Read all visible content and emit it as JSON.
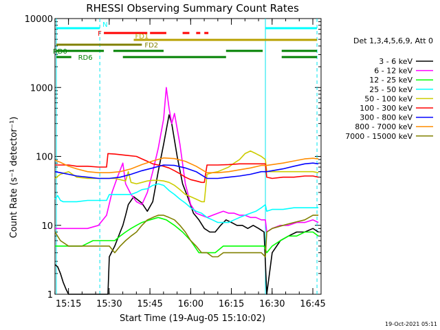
{
  "chart_data": {
    "type": "line",
    "title": "RHESSI Observing Summary Count Rates",
    "xlabel": "Start Time (19-Aug-05 15:10:02)",
    "ylabel": "Count Rate (s⁻¹ detector⁻¹)",
    "y_scale": "log",
    "ylim": [
      1,
      10000
    ],
    "xlim_minutes": [
      0,
      98
    ],
    "x_ticks": [
      "15:15",
      "15:30",
      "15:45",
      "16:00",
      "16:15",
      "16:30",
      "16:45"
    ],
    "x_tick_minutes": [
      4.97,
      19.97,
      34.97,
      49.97,
      64.97,
      79.97,
      94.97
    ],
    "y_ticks": [
      "1",
      "10",
      "100",
      "1000",
      "10000"
    ],
    "y_tick_values": [
      1,
      10,
      100,
      1000,
      10000
    ],
    "legend_title": "Det 1,3,4,5,6,9, Att 0",
    "legend_position": "right",
    "timestamp": "19-Oct-2021 05:11",
    "cyan_solid_lines_minutes": [
      0.5,
      77.5
    ],
    "cyan_dashed_lines_minutes": [
      16.5,
      96.5
    ],
    "flag_bars": [
      {
        "label": "N",
        "color": "#00ffff",
        "segments": [
          [
            0.5,
            16.5
          ],
          [
            77.5,
            96.5
          ]
        ]
      },
      {
        "label": "F",
        "color": "#ff0000",
        "segments": [
          [
            18.0,
            34.0
          ],
          [
            35.0,
            41.0
          ],
          [
            47.0,
            49.5
          ],
          [
            52.0,
            53.5
          ],
          [
            55.0,
            56.5
          ]
        ]
      },
      {
        "label": "FD1",
        "color": "#b8a000",
        "segments": [
          [
            29.0,
            96.5
          ]
        ]
      },
      {
        "label": "FD2",
        "color": "#808000",
        "segments": [
          [
            0.5,
            32.0
          ]
        ]
      },
      {
        "label": "RD0",
        "color": "#008000",
        "segments": [
          [
            0.5,
            18.0
          ],
          [
            21.5,
            40.0
          ],
          [
            63.0,
            76.5
          ],
          [
            83.5,
            96.5
          ]
        ]
      },
      {
        "label": "RD6",
        "color": "#008000",
        "segments": [
          [
            0.5,
            6.0
          ],
          [
            25.0,
            63.0
          ],
          [
            83.5,
            96.5
          ]
        ]
      }
    ],
    "series": [
      {
        "name": "3 - 6 keV",
        "color": "#000000",
        "x": [
          0,
          1,
          2,
          3,
          4,
          5,
          6,
          19.5,
          20,
          22,
          24,
          25,
          26,
          27,
          29,
          32,
          34,
          36,
          38,
          40,
          42,
          43,
          45,
          47,
          49,
          51,
          53,
          55,
          57,
          59,
          61,
          63,
          65,
          67,
          69,
          71,
          73,
          75,
          77,
          78,
          80,
          83,
          86,
          89,
          92,
          95,
          97
        ],
        "y": [
          2.7,
          2.5,
          2.0,
          1.5,
          1.2,
          1.0,
          1.0,
          1.0,
          3.5,
          5,
          8,
          10,
          14,
          20,
          26,
          21,
          16,
          22,
          60,
          150,
          400,
          300,
          100,
          40,
          25,
          15,
          12,
          9,
          8,
          8,
          10,
          12,
          11,
          10,
          10,
          9,
          10,
          9,
          8,
          1.0,
          4,
          6,
          7,
          8,
          8,
          9,
          8
        ]
      },
      {
        "name": "6 - 12 keV",
        "color": "#ff00ff",
        "x": [
          0,
          2,
          5,
          8,
          12,
          16,
          19,
          21,
          23,
          25,
          26,
          28,
          30,
          32,
          34,
          36,
          38,
          40,
          41,
          42,
          43,
          44,
          46,
          48,
          50,
          52,
          54,
          56,
          58,
          60,
          62,
          64,
          66,
          68,
          70,
          72,
          74,
          76,
          77.5,
          78,
          80,
          83,
          86,
          89,
          92,
          95,
          97
        ],
        "y": [
          9,
          9,
          9,
          9,
          9,
          10,
          14,
          30,
          50,
          80,
          40,
          28,
          22,
          20,
          30,
          60,
          130,
          350,
          1000,
          500,
          300,
          420,
          150,
          40,
          20,
          15,
          14,
          13,
          14,
          15,
          16,
          15,
          15,
          14,
          14,
          13,
          13,
          12,
          12,
          8,
          9,
          10,
          10,
          11,
          11,
          12,
          11
        ]
      },
      {
        "name": "12 - 25 keV",
        "color": "#00ff00",
        "x": [
          0,
          3,
          6,
          10,
          14,
          18,
          20,
          22,
          24,
          26,
          28,
          30,
          32,
          35,
          38,
          41,
          44,
          47,
          50,
          53,
          56,
          59,
          62,
          65,
          68,
          71,
          74,
          77,
          78,
          80,
          83,
          86,
          89,
          92,
          95,
          97
        ],
        "y": [
          5,
          5,
          5,
          5,
          6,
          6,
          6,
          6,
          7,
          8,
          9,
          10,
          11,
          12,
          13,
          12,
          10,
          8,
          6,
          4,
          4,
          4,
          5,
          5,
          5,
          5,
          5,
          5,
          4,
          5,
          6,
          7,
          7,
          8,
          8,
          7
        ]
      },
      {
        "name": "25 - 50 keV",
        "color": "#00ffff",
        "x": [
          0,
          1,
          2,
          3,
          5,
          8,
          12,
          16,
          19,
          20,
          22,
          24,
          26,
          28,
          30,
          32,
          34,
          36,
          38,
          40,
          42,
          44,
          46,
          48,
          50,
          52,
          54,
          56,
          58,
          60,
          62,
          64,
          66,
          68,
          70,
          72,
          74,
          76,
          77.5,
          78,
          80,
          84,
          88,
          92,
          95,
          97
        ],
        "y": [
          24,
          27,
          23,
          22,
          22,
          22,
          23,
          23,
          23,
          28,
          28,
          28,
          28,
          28,
          30,
          33,
          34,
          38,
          40,
          38,
          32,
          28,
          24,
          21,
          18,
          16,
          15,
          13,
          12,
          11,
          11,
          11,
          12,
          13,
          14,
          15,
          16,
          18,
          20,
          16,
          17,
          17,
          18,
          18,
          18,
          18
        ]
      },
      {
        "name": "50 - 100 keV",
        "color": "#cccc00",
        "x": [
          0,
          2,
          5,
          8,
          12,
          16,
          19,
          20,
          22,
          24,
          26,
          27,
          28,
          30,
          32,
          34,
          36,
          38,
          40,
          42,
          44,
          46,
          48,
          50,
          52,
          54,
          55,
          56,
          58,
          60,
          62,
          64,
          66,
          68,
          70,
          72,
          74,
          76,
          77.5,
          78,
          80,
          84,
          88,
          92,
          95,
          97
        ],
        "y": [
          48,
          55,
          60,
          50,
          48,
          48,
          48,
          48,
          48,
          46,
          44,
          60,
          42,
          40,
          42,
          44,
          45,
          45,
          44,
          42,
          38,
          33,
          28,
          26,
          24,
          22,
          22,
          55,
          58,
          60,
          65,
          70,
          80,
          90,
          110,
          120,
          110,
          100,
          90,
          60,
          60,
          60,
          60,
          60,
          60,
          58
        ]
      },
      {
        "name": "100 - 300 keV",
        "color": "#ff0000",
        "x": [
          0,
          2,
          5,
          8,
          12,
          16,
          19,
          19.5,
          22,
          26,
          30,
          32,
          34,
          36,
          38,
          40,
          42,
          44,
          46,
          48,
          50,
          52,
          54,
          55,
          56,
          60,
          64,
          68,
          72,
          76,
          77.5,
          78,
          80,
          84,
          88,
          92,
          95,
          97
        ],
        "y": [
          75,
          75,
          75,
          72,
          72,
          70,
          70,
          110,
          108,
          104,
          100,
          92,
          85,
          78,
          75,
          72,
          68,
          62,
          56,
          50,
          46,
          44,
          42,
          42,
          75,
          75,
          76,
          78,
          78,
          78,
          78,
          50,
          48,
          50,
          50,
          52,
          52,
          50
        ]
      },
      {
        "name": "300 - 800 keV",
        "color": "#0000ff",
        "x": [
          0,
          2,
          5,
          8,
          12,
          16,
          20,
          24,
          28,
          32,
          36,
          40,
          44,
          48,
          52,
          56,
          60,
          64,
          68,
          72,
          76,
          78,
          80,
          84,
          88,
          92,
          95,
          97
        ],
        "y": [
          60,
          58,
          55,
          52,
          50,
          48,
          48,
          50,
          55,
          62,
          68,
          75,
          74,
          68,
          60,
          48,
          48,
          50,
          52,
          55,
          60,
          60,
          62,
          66,
          72,
          78,
          80,
          78
        ]
      },
      {
        "name": "800 - 7000 keV",
        "color": "#ff8c00",
        "x": [
          0,
          2,
          5,
          8,
          12,
          16,
          20,
          24,
          28,
          32,
          36,
          40,
          44,
          48,
          52,
          56,
          60,
          64,
          68,
          72,
          76,
          78,
          80,
          84,
          88,
          92,
          95,
          97
        ],
        "y": [
          88,
          82,
          72,
          66,
          60,
          58,
          58,
          60,
          66,
          76,
          86,
          95,
          93,
          85,
          72,
          58,
          58,
          60,
          64,
          68,
          74,
          74,
          76,
          80,
          86,
          92,
          94,
          92
        ]
      },
      {
        "name": "7000 - 15000 keV",
        "color": "#808000",
        "x": [
          0,
          2,
          5,
          8,
          12,
          16,
          20,
          22,
          24,
          26,
          28,
          30,
          32,
          34,
          36,
          38,
          40,
          42,
          44,
          46,
          48,
          50,
          52,
          54,
          56,
          58,
          60,
          62,
          64,
          66,
          68,
          70,
          72,
          74,
          76,
          77.5,
          78,
          80,
          84,
          88,
          92,
          95,
          97
        ],
        "y": [
          8,
          6,
          5,
          5,
          5,
          5,
          5,
          4,
          5,
          6,
          7,
          8,
          10,
          12,
          13,
          14,
          14,
          13,
          12,
          10,
          8,
          6,
          5,
          4,
          4,
          3.5,
          3.5,
          4,
          4,
          4,
          4,
          4,
          4,
          4,
          4,
          3.5,
          8,
          9,
          10,
          11,
          12,
          14,
          14
        ]
      }
    ]
  }
}
